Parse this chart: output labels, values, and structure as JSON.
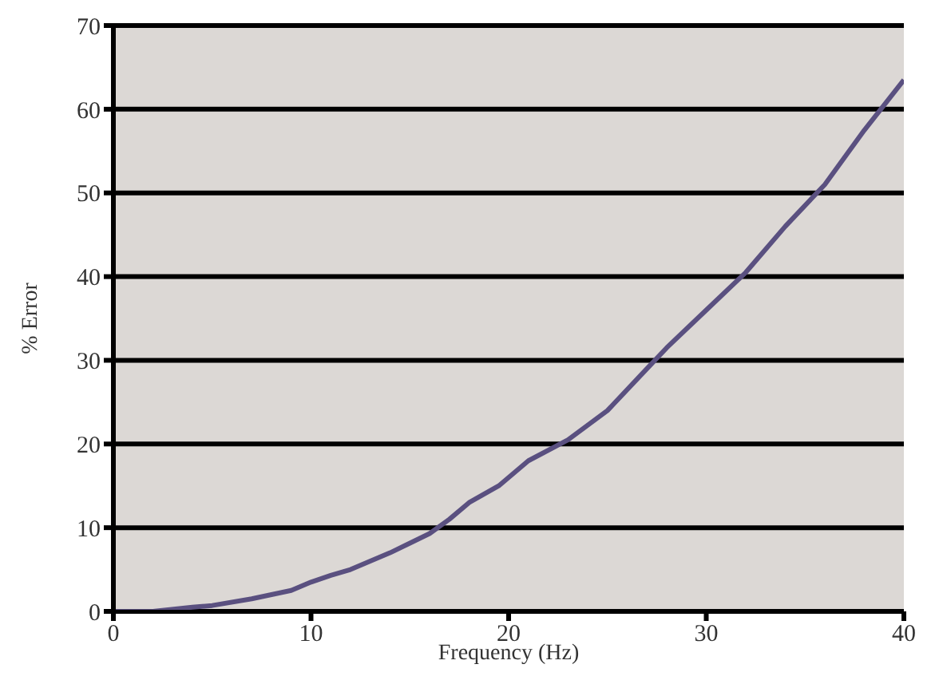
{
  "chart_data": {
    "type": "line",
    "xlabel": "Frequency (Hz)",
    "ylabel": "% Error",
    "x": [
      0,
      2,
      4,
      5,
      7,
      9,
      10,
      11,
      12,
      14,
      16,
      17,
      18,
      19.5,
      20,
      21,
      23,
      25,
      27,
      28,
      30,
      32,
      34,
      36,
      38,
      40
    ],
    "series": [
      {
        "color": "#5a5080",
        "values": [
          0,
          0,
          0.5,
          0.7,
          1.5,
          2.5,
          3.5,
          4.3,
          5,
          7,
          9.3,
          11,
          13,
          15,
          16,
          18,
          20.5,
          24,
          29,
          31.5,
          36,
          40.5,
          46,
          51,
          57.5,
          63.5
        ]
      }
    ],
    "xlim": [
      0,
      40
    ],
    "xticks": [
      0,
      10,
      20,
      30,
      40
    ],
    "ylim": [
      0,
      70
    ],
    "yticks": [
      0,
      10,
      20,
      30,
      40,
      50,
      60,
      70
    ],
    "grid": "y",
    "marker": "none",
    "line_style": "solid"
  }
}
